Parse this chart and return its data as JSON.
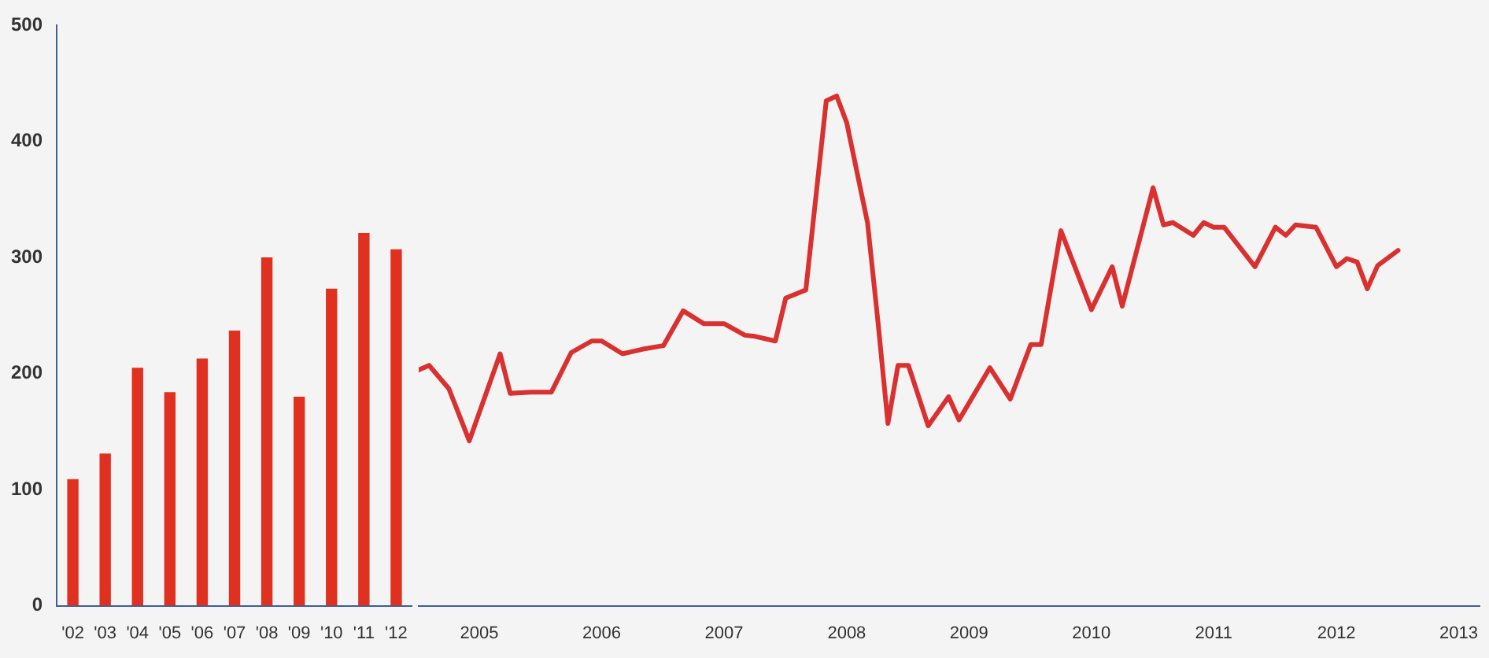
{
  "chart_data": [
    {
      "type": "bar",
      "categories": [
        "'02",
        "'03",
        "'04",
        "'05",
        "'06",
        "'07",
        "'08",
        "'09",
        "'10",
        "'11",
        "'12"
      ],
      "values": [
        109,
        131,
        205,
        184,
        213,
        237,
        300,
        180,
        273,
        321,
        307
      ],
      "color": "#e03020",
      "ylim": [
        0,
        500
      ],
      "yticks": [
        0,
        100,
        200,
        300,
        400,
        500
      ],
      "grid": false,
      "legend": false
    },
    {
      "type": "line",
      "tick_labels": "x",
      "color": "#d93030",
      "grid": false,
      "legend": false,
      "marker": "none",
      "line_style": "solid",
      "x": [
        "2005-01",
        "2005-02",
        "2005-04",
        "2005-06",
        "2005-09",
        "2005-10",
        "2005-12",
        "2006-02",
        "2006-04",
        "2006-06",
        "2006-07",
        "2006-09",
        "2006-11",
        "2007-01",
        "2007-03",
        "2007-05",
        "2007-07",
        "2007-09",
        "2007-10",
        "2007-12",
        "2008-01",
        "2008-03",
        "2008-05",
        "2008-06",
        "2008-07",
        "2008-09",
        "2008-10",
        "2008-11",
        "2008-12",
        "2009-01",
        "2009-03",
        "2009-05",
        "2009-06",
        "2009-09",
        "2009-11",
        "2010-01",
        "2010-02",
        "2010-04",
        "2010-07",
        "2010-09",
        "2010-10",
        "2011-01",
        "2011-02",
        "2011-03",
        "2011-05",
        "2011-06",
        "2011-07",
        "2011-08",
        "2011-11",
        "2012-01",
        "2012-02",
        "2012-03",
        "2012-05",
        "2012-07",
        "2012-08",
        "2012-09",
        "2012-10",
        "2012-11",
        "2013-01"
      ],
      "values": [
        203,
        207,
        187,
        142,
        217,
        183,
        184,
        184,
        218,
        228,
        228,
        217,
        221,
        224,
        254,
        243,
        243,
        233,
        232,
        228,
        265,
        272,
        435,
        439,
        416,
        330,
        248,
        157,
        207,
        207,
        155,
        180,
        160,
        205,
        178,
        225,
        225,
        323,
        255,
        292,
        258,
        360,
        328,
        330,
        319,
        330,
        326,
        326,
        292,
        326,
        319,
        328,
        326,
        292,
        299,
        296,
        273,
        293,
        306
      ],
      "xlim": [
        "2005-01-01",
        "2013-09-01"
      ],
      "xticks": [
        {
          "value": "2005-07-01",
          "label": "2005"
        },
        {
          "value": "2006-07-01",
          "label": "2006"
        },
        {
          "value": "2007-07-01",
          "label": "2007"
        },
        {
          "value": "2008-07-01",
          "label": "2008"
        },
        {
          "value": "2009-07-01",
          "label": "2009"
        },
        {
          "value": "2010-07-01",
          "label": "2010"
        },
        {
          "value": "2011-07-01",
          "label": "2011"
        },
        {
          "value": "2012-07-01",
          "label": "2012"
        },
        {
          "value": "2013-07-01",
          "label": "2013"
        }
      ],
      "ylim": [
        0,
        500
      ],
      "yticks": [
        0,
        100,
        200,
        300,
        400,
        500
      ]
    }
  ]
}
